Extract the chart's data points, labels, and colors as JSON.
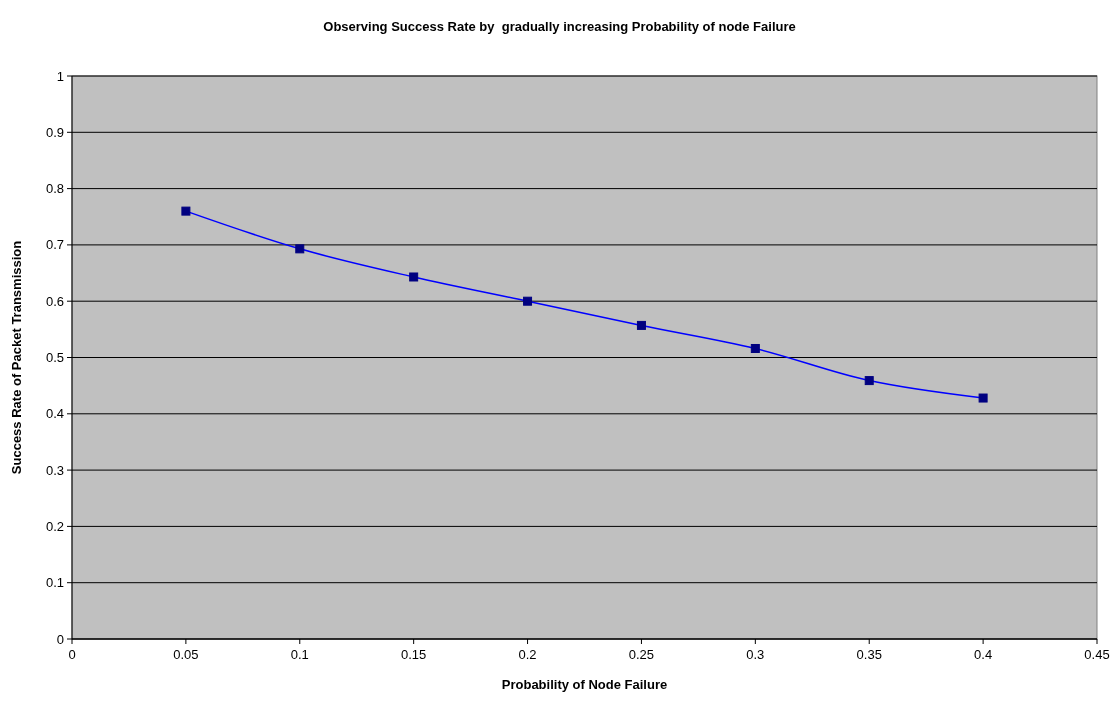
{
  "chart_data": {
    "type": "line",
    "title": "Observing Success Rate by  gradually increasing Probability of node Failure",
    "xlabel": "Probability of Node Failure",
    "ylabel": "Success Rate of Packet Transmission",
    "x": [
      0.05,
      0.1,
      0.15,
      0.2,
      0.25,
      0.3,
      0.35,
      0.4
    ],
    "series": [
      {
        "color": "#0000ff",
        "values": [
          0.76,
          0.693,
          0.643,
          0.6,
          0.557,
          0.516,
          0.459,
          0.428
        ]
      }
    ],
    "xlim": [
      0,
      0.45
    ],
    "xticks": [
      0,
      0.05,
      0.1,
      0.15,
      0.2,
      0.25,
      0.3,
      0.35,
      0.4,
      0.45
    ],
    "ylim": [
      0,
      1
    ],
    "yticks": [
      0,
      0.1,
      0.2,
      0.3,
      0.4,
      0.5,
      0.6,
      0.7,
      0.8,
      0.9,
      1
    ],
    "grid": "y",
    "marker": "square",
    "line_style": "solid"
  }
}
